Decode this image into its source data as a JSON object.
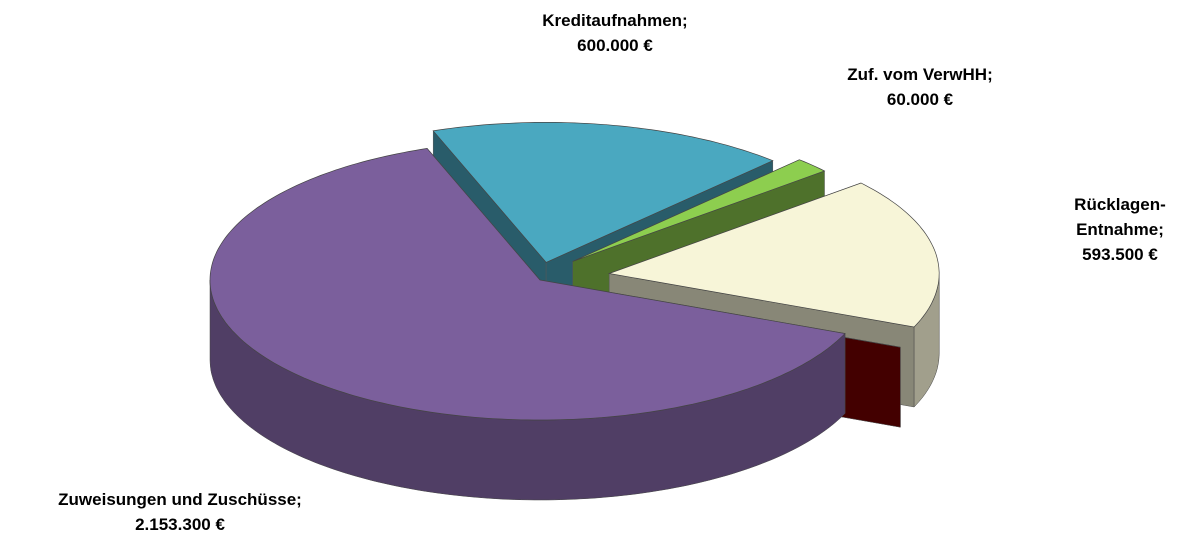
{
  "chart_data": {
    "type": "pie3d",
    "categories": [
      "Kreditaufnahmen;",
      "Zuf. vom VerwHH;",
      "Rücklagen-Entnahme;",
      null,
      "Zuweisungen und Zuschüsse;"
    ],
    "values": [
      600000,
      60000,
      593500,
      0,
      2153300
    ],
    "value_labels": [
      "600.000 €",
      "60.000 €",
      "593.500 €",
      null,
      "2.153.300 €"
    ],
    "colors": [
      "#4aa8c0",
      "#8dce4f",
      "#f7f5d8",
      "#7a0000",
      "#7b5f9c"
    ]
  }
}
